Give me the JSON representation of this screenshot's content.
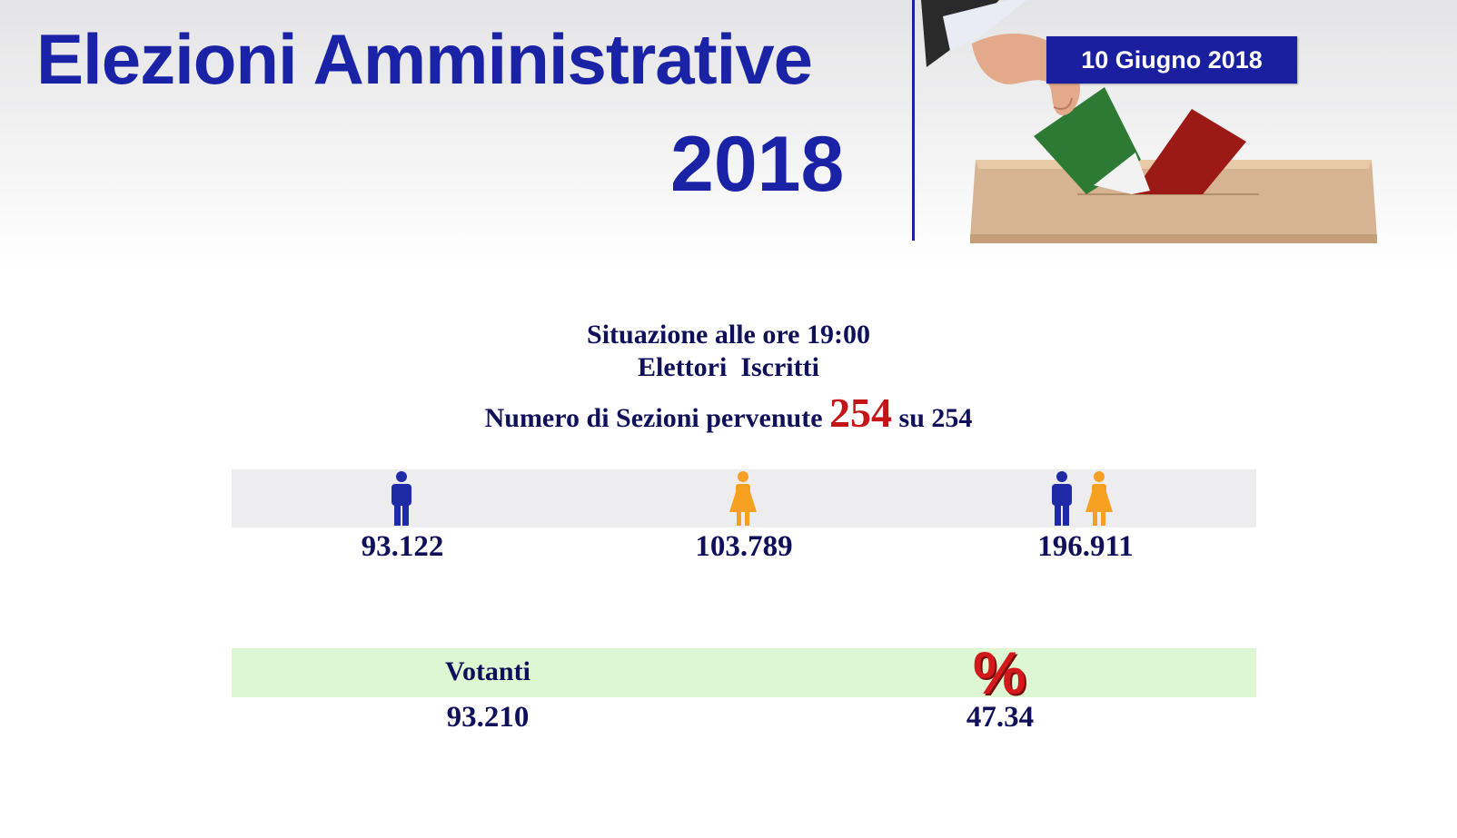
{
  "header": {
    "title": "Elezioni Amministrative",
    "year": "2018",
    "date": "10 Giugno 2018"
  },
  "summary": {
    "time_line": "Situazione alle ore 19:00",
    "subtitle": "Elettori  Iscritti",
    "sections_prefix": "Numero di Sezioni pervenute",
    "sections_received": "254",
    "sections_suffix": "su 254"
  },
  "electors": {
    "male": {
      "icon": "male-person-icon",
      "value": "93.122"
    },
    "female": {
      "icon": "female-person-icon",
      "value": "103.789"
    },
    "total": {
      "icon": "male-female-persons-icon",
      "value": "196.911"
    }
  },
  "turnout": {
    "voters_label": "Votanti",
    "voters_value": "93.210",
    "percent_icon": "percent-icon",
    "percent_value": "47.34"
  },
  "colors": {
    "brand_blue": "#1a22a6",
    "highlight_red": "#c41418",
    "male_icon": "#1f2aa6",
    "female_icon": "#f5a020",
    "stats_band": "#edecee",
    "vote_band": "#def7d3"
  }
}
